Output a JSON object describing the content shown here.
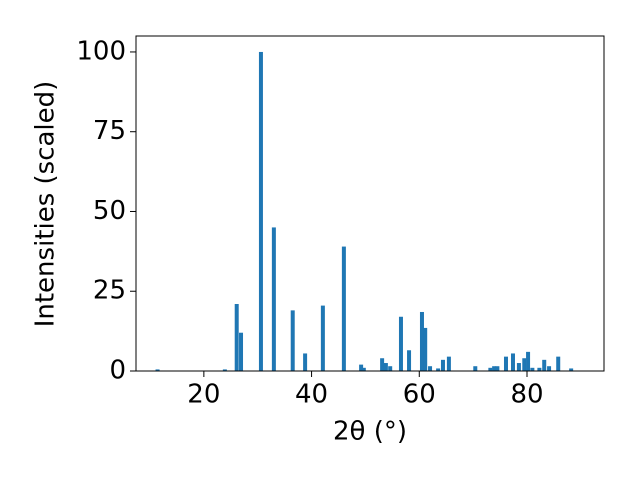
{
  "chart_data": {
    "type": "bar",
    "x_label": "2θ (°)",
    "y_label": "Intensities (scaled)",
    "color": "#1f77b4",
    "x": [
      11.4,
      23.9,
      26.1,
      26.9,
      30.6,
      33.0,
      36.5,
      38.8,
      42.1,
      46.0,
      49.2,
      49.7,
      53.1,
      53.8,
      54.6,
      56.6,
      58.1,
      60.5,
      61.1,
      62.0,
      63.5,
      64.4,
      65.5,
      70.4,
      73.2,
      73.9,
      74.5,
      76.1,
      77.4,
      78.5,
      79.5,
      80.2,
      81.0,
      82.3,
      83.2,
      84.1,
      85.8,
      88.2
    ],
    "values": [
      0.5,
      0.5,
      21,
      12,
      100,
      45,
      19,
      5.5,
      20.5,
      39,
      2,
      1,
      4,
      2.5,
      1.5,
      17,
      6.5,
      18.5,
      13.5,
      1.5,
      0.8,
      3.5,
      4.5,
      1.5,
      1,
      1.5,
      1.5,
      4.5,
      5.5,
      2.5,
      4,
      6,
      1,
      1,
      3.5,
      1.5,
      4.5,
      0.8
    ],
    "xlim": [
      7.4,
      94.3
    ],
    "xticks": [
      20,
      40,
      60,
      80
    ],
    "ylim": [
      0,
      105
    ],
    "yticks": [
      0,
      25,
      50,
      75,
      100
    ]
  }
}
